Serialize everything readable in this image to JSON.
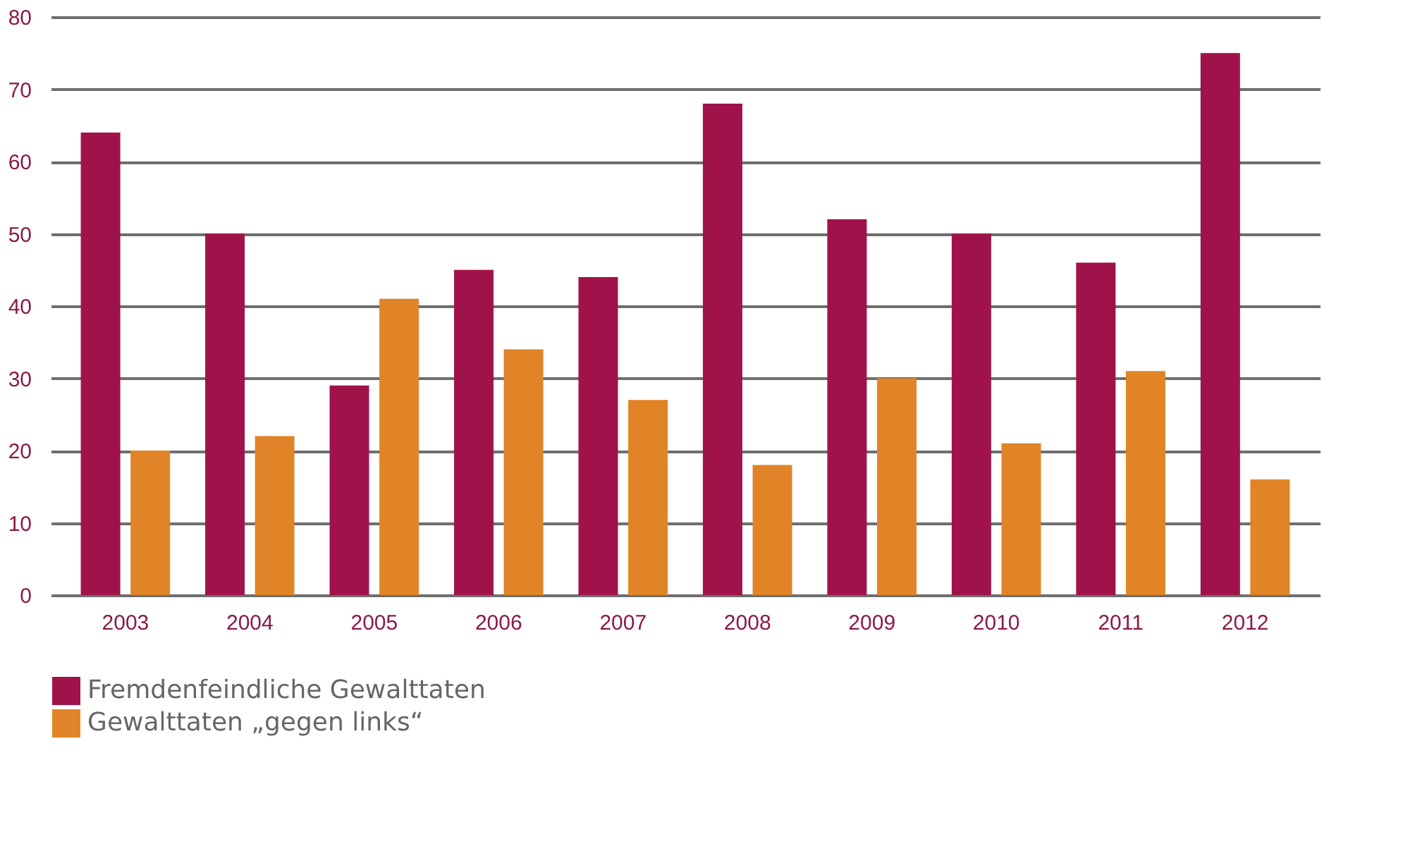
{
  "chart_data": {
    "type": "bar",
    "categories": [
      "2003",
      "2004",
      "2005",
      "2006",
      "2007",
      "2008",
      "2009",
      "2010",
      "2011",
      "2012"
    ],
    "series": [
      {
        "name": "Fremdenfeindliche Gewalttaten",
        "color": "#a0134a",
        "values": [
          64,
          50,
          29,
          45,
          44,
          68,
          52,
          50,
          46,
          75
        ]
      },
      {
        "name": "Gewalttaten „gegen links“",
        "color": "#e08427",
        "values": [
          20,
          22,
          41,
          34,
          27,
          18,
          30,
          21,
          31,
          16
        ]
      }
    ],
    "ylim": [
      0,
      80
    ],
    "yticks": [
      0,
      10,
      20,
      30,
      40,
      50,
      60,
      70,
      80
    ],
    "grid": "y",
    "legend": "bottom"
  }
}
